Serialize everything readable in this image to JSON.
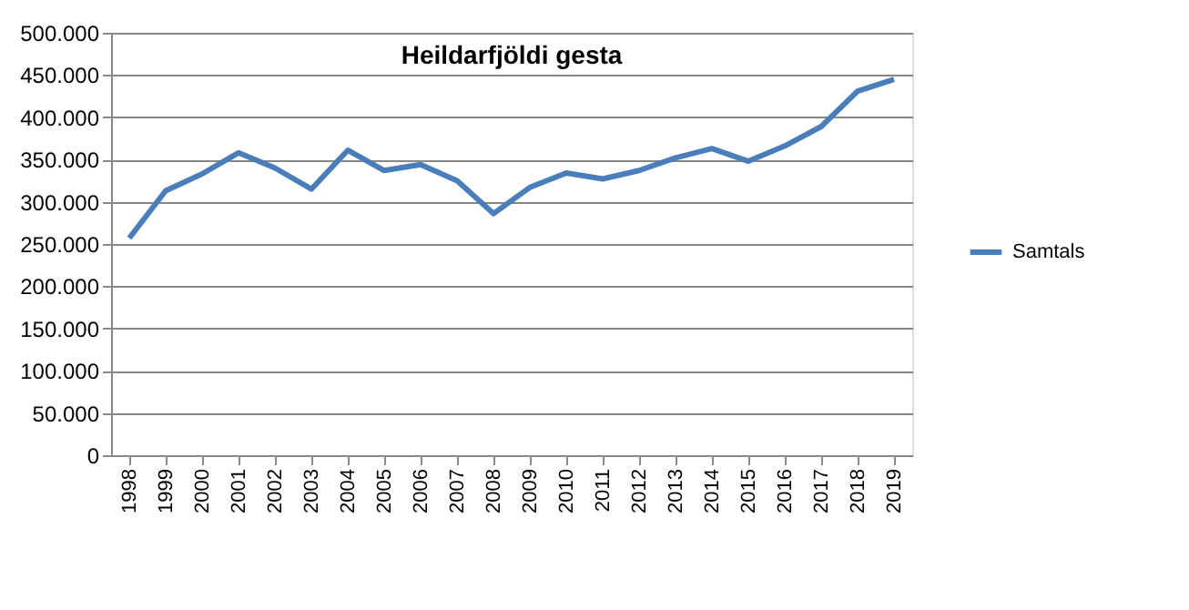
{
  "chart_data": {
    "type": "line",
    "title": "Heildarfjöldi gesta",
    "categories": [
      "1998",
      "1999",
      "2000",
      "2001",
      "2002",
      "2003",
      "2004",
      "2005",
      "2006",
      "2007",
      "2008",
      "2009",
      "2010",
      "2011",
      "2012",
      "2013",
      "2014",
      "2015",
      "2016",
      "2017",
      "2018",
      "2019"
    ],
    "series": [
      {
        "name": "Samtals",
        "color": "#4a7ebb",
        "values": [
          257000,
          313000,
          333000,
          358000,
          340000,
          315000,
          361000,
          337000,
          344000,
          325000,
          286000,
          317000,
          334000,
          327000,
          337000,
          352000,
          363000,
          348000,
          366000,
          389000,
          431000,
          445000
        ]
      }
    ],
    "ylim": [
      0,
      500000
    ],
    "yticks": [
      {
        "value": 0,
        "label": "0"
      },
      {
        "value": 50000,
        "label": "50.000"
      },
      {
        "value": 100000,
        "label": "100.000"
      },
      {
        "value": 150000,
        "label": "150.000"
      },
      {
        "value": 200000,
        "label": "200.000"
      },
      {
        "value": 250000,
        "label": "250.000"
      },
      {
        "value": 300000,
        "label": "300.000"
      },
      {
        "value": 350000,
        "label": "350.000"
      },
      {
        "value": 400000,
        "label": "400.000"
      },
      {
        "value": 450000,
        "label": "450.000"
      },
      {
        "value": 500000,
        "label": "500.000"
      }
    ],
    "grid": "y",
    "legend": "right",
    "marker": "none",
    "line_style": "solid"
  }
}
